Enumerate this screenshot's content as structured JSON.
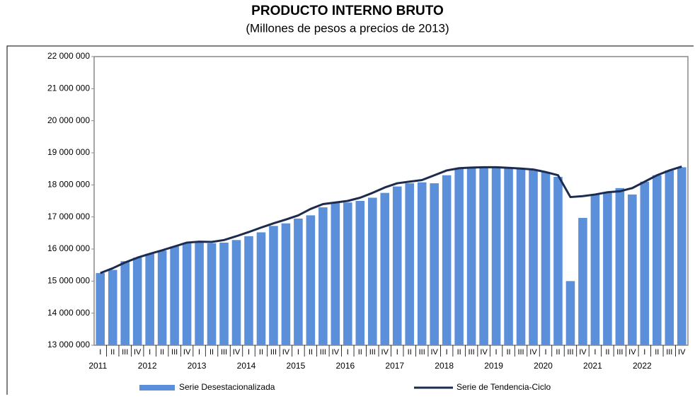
{
  "chart_data": {
    "type": "bar",
    "title": "PRODUCTO INTERNO BRUTO",
    "subtitle": "(Millones de pesos a precios de 2013)",
    "categories": [
      "I",
      "II",
      "III",
      "IV",
      "I",
      "II",
      "III",
      "IV",
      "I",
      "II",
      "III",
      "IV",
      "I",
      "II",
      "III",
      "IV",
      "I",
      "II",
      "III",
      "IV",
      "I",
      "II",
      "III",
      "IV",
      "I",
      "II",
      "III",
      "IV",
      "I",
      "II",
      "III",
      "IV",
      "I",
      "II",
      "III",
      "IV",
      "I",
      "II",
      "III",
      "IV",
      "I",
      "II",
      "III",
      "IV",
      "I",
      "II",
      "III",
      "IV"
    ],
    "years": [
      "2011",
      "2012",
      "2013",
      "2014",
      "2015",
      "2016",
      "2017",
      "2018",
      "2019",
      "2020",
      "2021",
      "2022"
    ],
    "series": [
      {
        "name": "Serie Desestacionalizada",
        "type": "bar",
        "color": "#5b8fd9",
        "values": [
          15250000,
          15350000,
          15620000,
          15730000,
          15850000,
          15950000,
          16080000,
          16180000,
          16200000,
          16180000,
          16200000,
          16280000,
          16400000,
          16520000,
          16720000,
          16800000,
          16950000,
          17050000,
          17300000,
          17450000,
          17450000,
          17500000,
          17600000,
          17750000,
          17950000,
          18050000,
          18080000,
          18050000,
          18300000,
          18500000,
          18520000,
          18530000,
          18550000,
          18520000,
          18500000,
          18480000,
          18400000,
          18250000,
          15000000,
          16970000,
          17700000,
          17750000,
          17900000,
          17700000,
          18100000,
          18300000,
          18450000,
          18550000
        ]
      },
      {
        "name": "Serie de Tendencia-Ciclo",
        "type": "line",
        "color": "#1c2b4e",
        "values": [
          15250000,
          15400000,
          15580000,
          15730000,
          15850000,
          15960000,
          16080000,
          16200000,
          16230000,
          16220000,
          16280000,
          16400000,
          16530000,
          16670000,
          16800000,
          16920000,
          17050000,
          17250000,
          17400000,
          17450000,
          17500000,
          17600000,
          17750000,
          17920000,
          18050000,
          18100000,
          18150000,
          18300000,
          18450000,
          18520000,
          18540000,
          18550000,
          18550000,
          18530000,
          18510000,
          18480000,
          18400000,
          18300000,
          17620000,
          17650000,
          17700000,
          17770000,
          17800000,
          17900000,
          18100000,
          18300000,
          18450000,
          18570000
        ]
      }
    ],
    "ylim": [
      13000000,
      22000000
    ],
    "yticks": [
      {
        "value": 13000000,
        "label": "13 000 000"
      },
      {
        "value": 14000000,
        "label": "14 000 000"
      },
      {
        "value": 15000000,
        "label": "15 000 000"
      },
      {
        "value": 16000000,
        "label": "16 000 000"
      },
      {
        "value": 17000000,
        "label": "17 000 000"
      },
      {
        "value": 18000000,
        "label": "18 000 000"
      },
      {
        "value": 19000000,
        "label": "19 000 000"
      },
      {
        "value": 20000000,
        "label": "20 000 000"
      },
      {
        "value": 21000000,
        "label": "21 000 000"
      },
      {
        "value": 22000000,
        "label": "22 000 000"
      }
    ]
  }
}
